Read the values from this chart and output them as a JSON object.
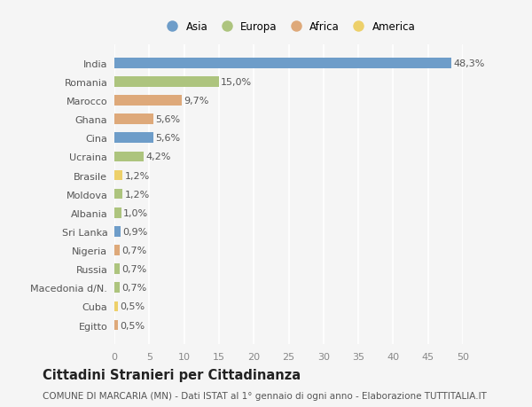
{
  "countries": [
    "India",
    "Romania",
    "Marocco",
    "Ghana",
    "Cina",
    "Ucraina",
    "Brasile",
    "Moldova",
    "Albania",
    "Sri Lanka",
    "Nigeria",
    "Russia",
    "Macedonia d/N.",
    "Cuba",
    "Egitto"
  ],
  "values": [
    48.3,
    15.0,
    9.7,
    5.6,
    5.6,
    4.2,
    1.2,
    1.2,
    1.0,
    0.9,
    0.7,
    0.7,
    0.7,
    0.5,
    0.5
  ],
  "labels": [
    "48,3%",
    "15,0%",
    "9,7%",
    "5,6%",
    "5,6%",
    "4,2%",
    "1,2%",
    "1,2%",
    "1,0%",
    "0,9%",
    "0,7%",
    "0,7%",
    "0,7%",
    "0,5%",
    "0,5%"
  ],
  "continents": [
    "Asia",
    "Europa",
    "Africa",
    "Africa",
    "Asia",
    "Europa",
    "America",
    "Europa",
    "Europa",
    "Asia",
    "Africa",
    "Europa",
    "Europa",
    "America",
    "Africa"
  ],
  "continent_colors": {
    "Asia": "#6e9dc9",
    "Europa": "#adc47e",
    "Africa": "#dea97a",
    "America": "#edd06a"
  },
  "legend_order": [
    "Asia",
    "Europa",
    "Africa",
    "America"
  ],
  "title": "Cittadini Stranieri per Cittadinanza",
  "subtitle": "COMUNE DI MARCARIA (MN) - Dati ISTAT al 1° gennaio di ogni anno - Elaborazione TUTTITALIA.IT",
  "xlim": [
    0,
    50
  ],
  "xticks": [
    0,
    5,
    10,
    15,
    20,
    25,
    30,
    35,
    40,
    45,
    50
  ],
  "bg_color": "#f5f5f5",
  "plot_bg_color": "#f5f5f5",
  "grid_color": "#ffffff",
  "bar_height": 0.55,
  "label_fontsize": 8,
  "tick_fontsize": 8,
  "country_fontsize": 8,
  "title_fontsize": 10.5,
  "subtitle_fontsize": 7.5,
  "label_color": "#555555",
  "tick_color": "#888888",
  "country_color": "#555555"
}
